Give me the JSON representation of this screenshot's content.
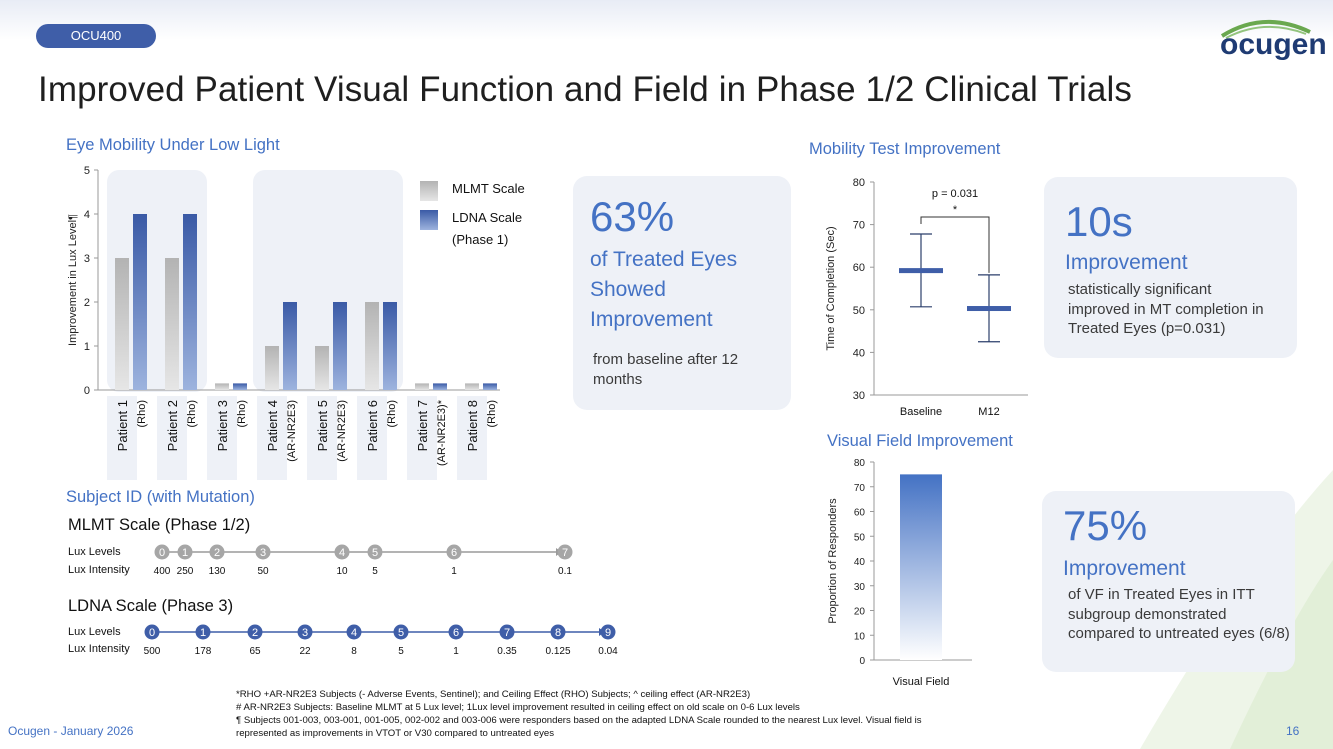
{
  "header": {
    "tag": "OCU400",
    "title": "Improved Patient Visual Function and Field in Phase 1/2 Clinical Trials",
    "logo_text": "ocugen",
    "logo_mark": "."
  },
  "colors": {
    "accent": "#4472c4",
    "gray_bar": "#bdbdbd",
    "blue_bar": "#3f5ea8",
    "card": "#eef1f7"
  },
  "sections": {
    "eye_mobility": "Eye Mobility Under Low Light",
    "subject_id": "Subject ID (with Mutation)",
    "mobility_test": "Mobility Test Improvement",
    "visual_field": "Visual Field Improvement"
  },
  "cards": {
    "c63": {
      "big": "63%",
      "line1": "of Treated Eyes",
      "line2": "Showed",
      "line3": "Improvement",
      "desc": "from baseline after 12 months"
    },
    "c10": {
      "big": "10s",
      "sub": "Improvement",
      "desc": "statistically significant improved in MT completion in Treated Eyes (p=0.031)"
    },
    "c75": {
      "big": "75%",
      "sub": "Improvement",
      "desc": "of VF in Treated Eyes in ITT subgroup demonstrated compared to untreated eyes (6/8)"
    }
  },
  "chart_data": [
    {
      "type": "bar",
      "ylabel": "Improvement in Lux Level¶",
      "ylim": [
        0,
        5
      ],
      "yticks": [
        "0",
        "1",
        "2",
        "3",
        "4",
        "5"
      ],
      "legend_placement": "top-right",
      "categories": [
        {
          "patient": "Patient 1",
          "mutation": "(Rho)"
        },
        {
          "patient": "Patient 2",
          "mutation": "(Rho)"
        },
        {
          "patient": "Patient 3",
          "mutation": "(Rho)"
        },
        {
          "patient": "Patient 4",
          "mutation": "(AR-NR2E3)"
        },
        {
          "patient": "Patient 5",
          "mutation": "(AR-NR2E3)"
        },
        {
          "patient": "Patient 6",
          "mutation": "(Rho)"
        },
        {
          "patient": "Patient 7",
          "mutation": "(AR-NR2E3)*"
        },
        {
          "patient": "Patient 8",
          "mutation": "(Rho)"
        }
      ],
      "series": [
        {
          "name": "MLMT Scale",
          "values": [
            3,
            3,
            0.15,
            1,
            1,
            2,
            0.15,
            0.15
          ]
        },
        {
          "name": "LDNA Scale",
          "name_line2": "(Phase 1)",
          "values": [
            4,
            4,
            0.15,
            2,
            2,
            2,
            0.15,
            0.15
          ]
        }
      ]
    },
    {
      "type": "box",
      "ylabel": "Time of Completion (Sec)",
      "ylim": [
        30,
        80
      ],
      "yticks": [
        "30",
        "40",
        "50",
        "60",
        "70",
        "80"
      ],
      "categories": [
        "Baseline",
        "M12"
      ],
      "series": [
        {
          "name": "Baseline",
          "median": 59.2,
          "min": 50.7,
          "max": 67.8
        },
        {
          "name": "M12",
          "median": 50.3,
          "min": 42.5,
          "max": 58.2
        }
      ],
      "annotation": {
        "p": "p = 0.031",
        "star": "*"
      }
    },
    {
      "type": "bar",
      "ylabel": "Proportion of Responders",
      "ylim": [
        0,
        80
      ],
      "yticks": [
        "0",
        "10",
        "20",
        "30",
        "40",
        "50",
        "60",
        "70",
        "80"
      ],
      "categories": [
        "Visual Field"
      ],
      "values": [
        75
      ]
    }
  ],
  "mlmt_scale": {
    "title": "MLMT Scale (Phase 1/2)",
    "row1_label": "Lux Levels",
    "row2_label": "Lux Intensity",
    "levels": [
      "0",
      "1",
      "2",
      "3",
      "4",
      "5",
      "6",
      "7"
    ],
    "intensities": [
      "400",
      "250",
      "130",
      "50",
      "10",
      "5",
      "1",
      "0.1"
    ]
  },
  "ldna_scale": {
    "title": "LDNA Scale (Phase 3)",
    "row1_label": "Lux Levels",
    "row2_label": "Lux Intensity",
    "levels": [
      "0",
      "1",
      "2",
      "3",
      "4",
      "5",
      "6",
      "7",
      "8",
      "9"
    ],
    "intensities": [
      "500",
      "178",
      "65",
      "22",
      "8",
      "5",
      "1",
      "0.35",
      "0.125",
      "0.04"
    ]
  },
  "footnotes": {
    "line1": "*RHO +AR-NR2E3 Subjects (- Adverse Events, Sentinel); and Ceiling Effect (RHO) Subjects; ^ ceiling effect (AR-NR2E3)",
    "line2": "# AR-NR2E3 Subjects: Baseline MLMT at 5 Lux level; 1Lux level improvement resulted in ceiling effect on old scale on 0-6 Lux levels",
    "line3": "¶ Subjects 001-003, 003-001, 001-005, 002-002 and 003-006 were responders based on the adapted LDNA Scale rounded to the nearest Lux level.   Visual field is",
    "line4": "represented as improvements in  VTOT or V30 compared to untreated eyes"
  },
  "footer": {
    "left": "Ocugen - January 2026",
    "page": "16"
  }
}
